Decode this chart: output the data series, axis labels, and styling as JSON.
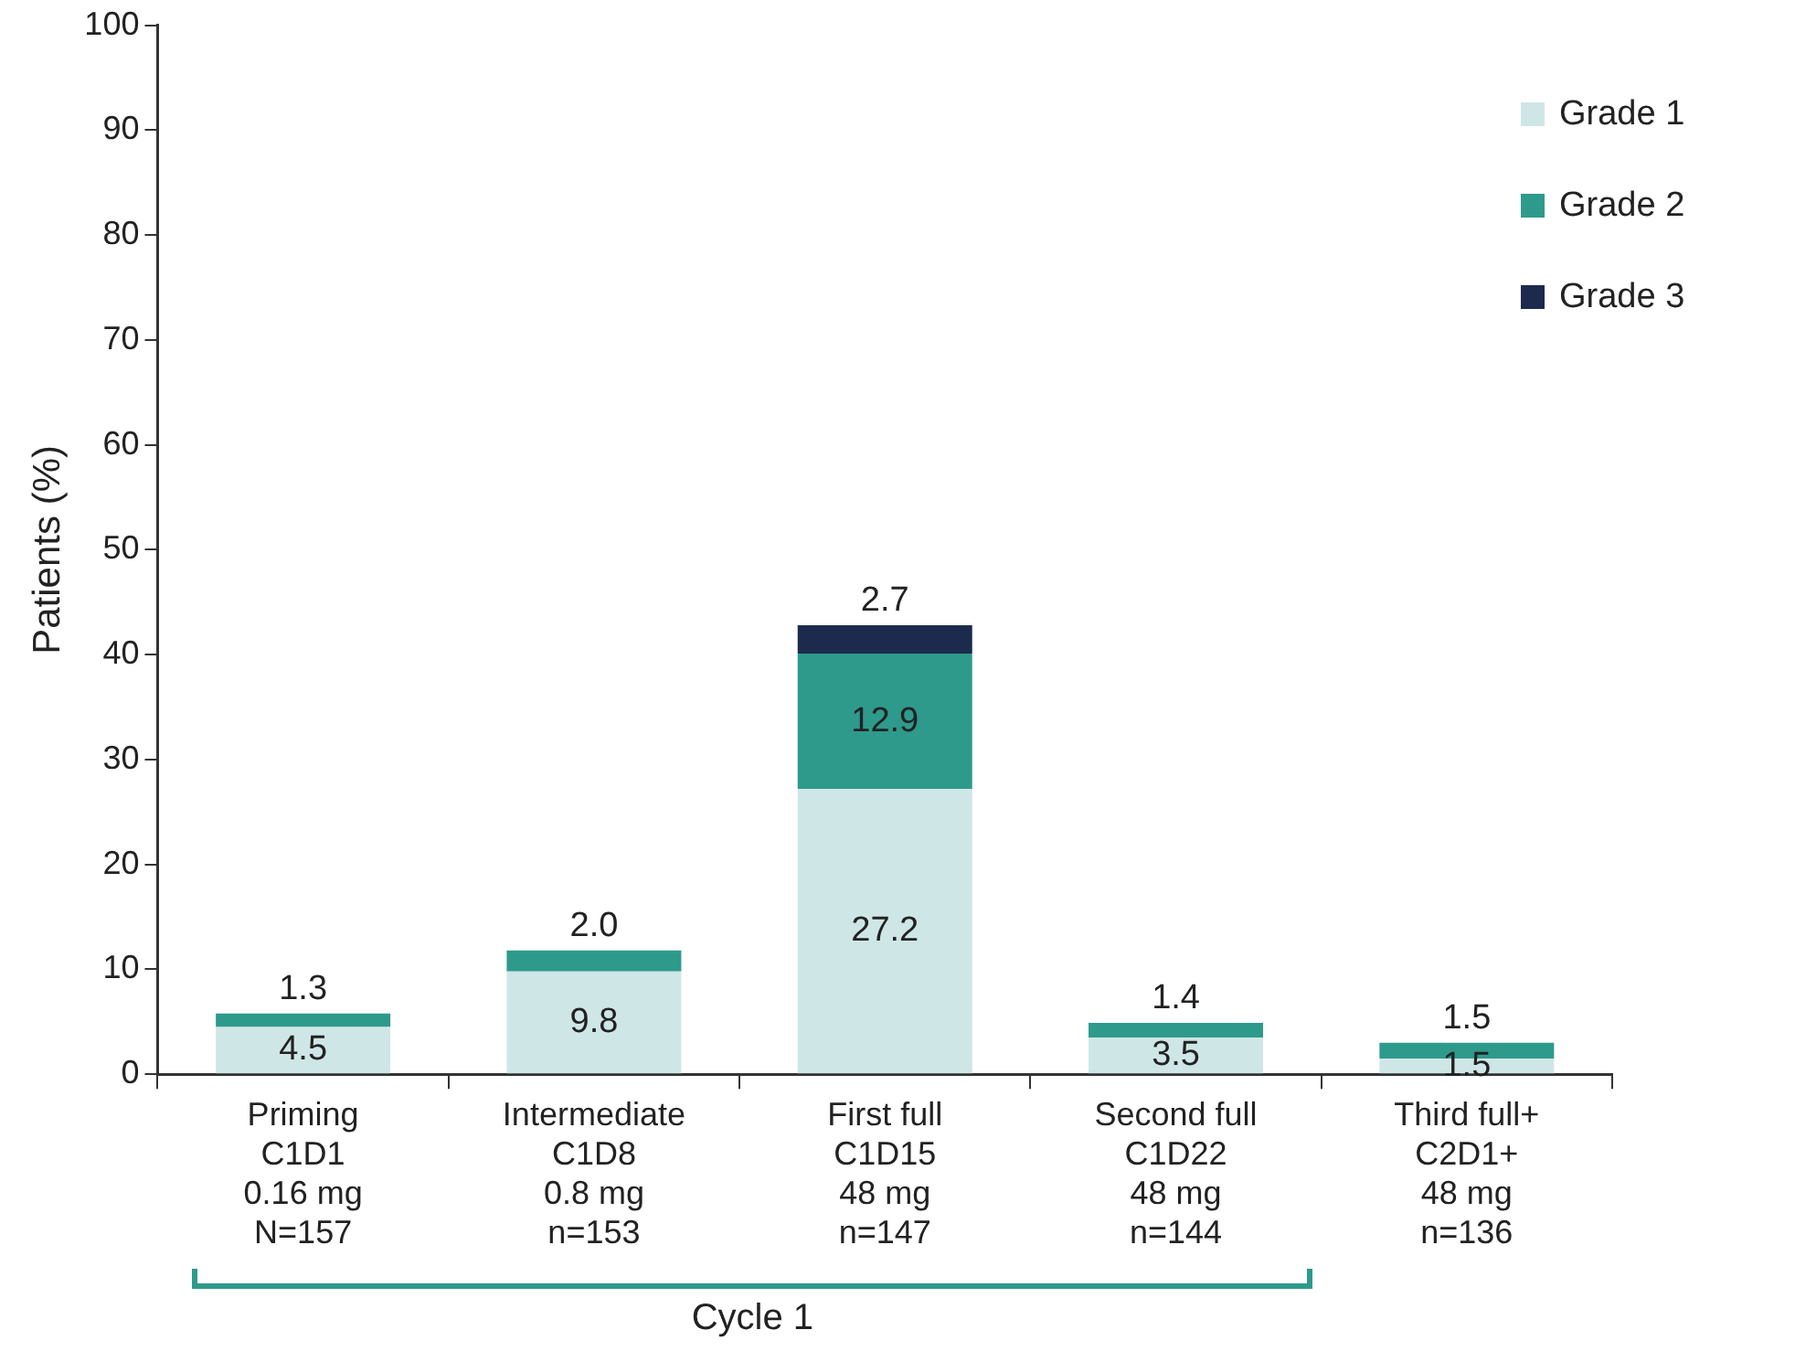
{
  "chart_data": {
    "type": "bar",
    "stacked": true,
    "ylabel": "Patients (%)",
    "categories": [
      "Priming\nC1D1\n0.16 mg\nN=157",
      "Intermediate\nC1D8\n0.8 mg\nn=153",
      "First full\nC1D15\n48 mg\nn=147",
      "Second full\nC1D22\n48 mg\nn=144",
      "Third full+\nC2D1+\n48 mg\nn=136"
    ],
    "series": [
      {
        "name": "Grade 1",
        "color": "#cfe6e6",
        "values": [
          4.5,
          9.8,
          27.2,
          3.5,
          1.5
        ],
        "value_labels": [
          "4.5",
          "9.8",
          "27.2",
          "3.5",
          "1.5"
        ]
      },
      {
        "name": "Grade 2",
        "color": "#2e9a8c",
        "values": [
          1.3,
          2.0,
          12.9,
          1.4,
          1.5
        ],
        "value_labels": [
          "1.3",
          "2.0",
          "12.9",
          "1.4",
          "1.5"
        ]
      },
      {
        "name": "Grade 3",
        "color": "#1c2a4e",
        "values": [
          null,
          null,
          2.7,
          null,
          null
        ],
        "value_labels": [
          null,
          null,
          "2.7",
          null,
          null
        ]
      }
    ],
    "ylim": [
      0,
      100
    ],
    "yticks": [
      0,
      10,
      20,
      30,
      40,
      50,
      60,
      70,
      80,
      90,
      100
    ],
    "grid": false,
    "legend": "top right",
    "annotations": [
      "Cycle 1"
    ]
  }
}
